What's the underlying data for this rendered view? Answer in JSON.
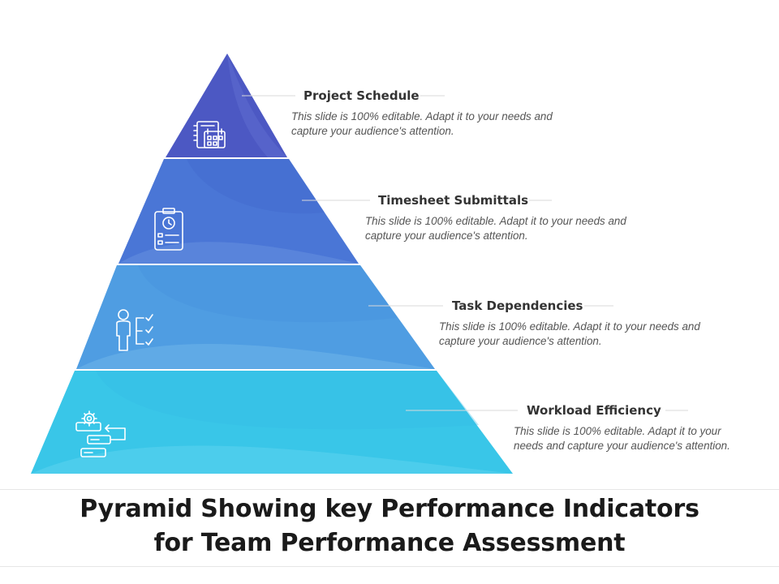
{
  "tiers": [
    {
      "title": "Project Schedule",
      "description": "This slide is 100% editable. Adapt it to your needs and capture your audience's attention.",
      "color": "#4a56c0",
      "icon": "calendar-schedule-icon"
    },
    {
      "title": "Timesheet Submittals",
      "description": "This slide is 100% editable. Adapt it to your needs and capture your audience's attention.",
      "color": "#4a77d6",
      "icon": "clipboard-clock-icon"
    },
    {
      "title": "Task Dependencies",
      "description": "This slide is 100% editable. Adapt it to your needs and capture your audience's attention.",
      "color": "#4d9fe3",
      "icon": "person-checklist-icon"
    },
    {
      "title": "Workload Efficiency",
      "description": "This slide is 100% editable. Adapt it to your needs and capture your audience's attention.",
      "color": "#3ac6e8",
      "icon": "gear-workflow-icon"
    }
  ],
  "slide_title": {
    "line1": "Pyramid Showing key Performance Indicators",
    "line2": "for Team Performance Assessment"
  }
}
